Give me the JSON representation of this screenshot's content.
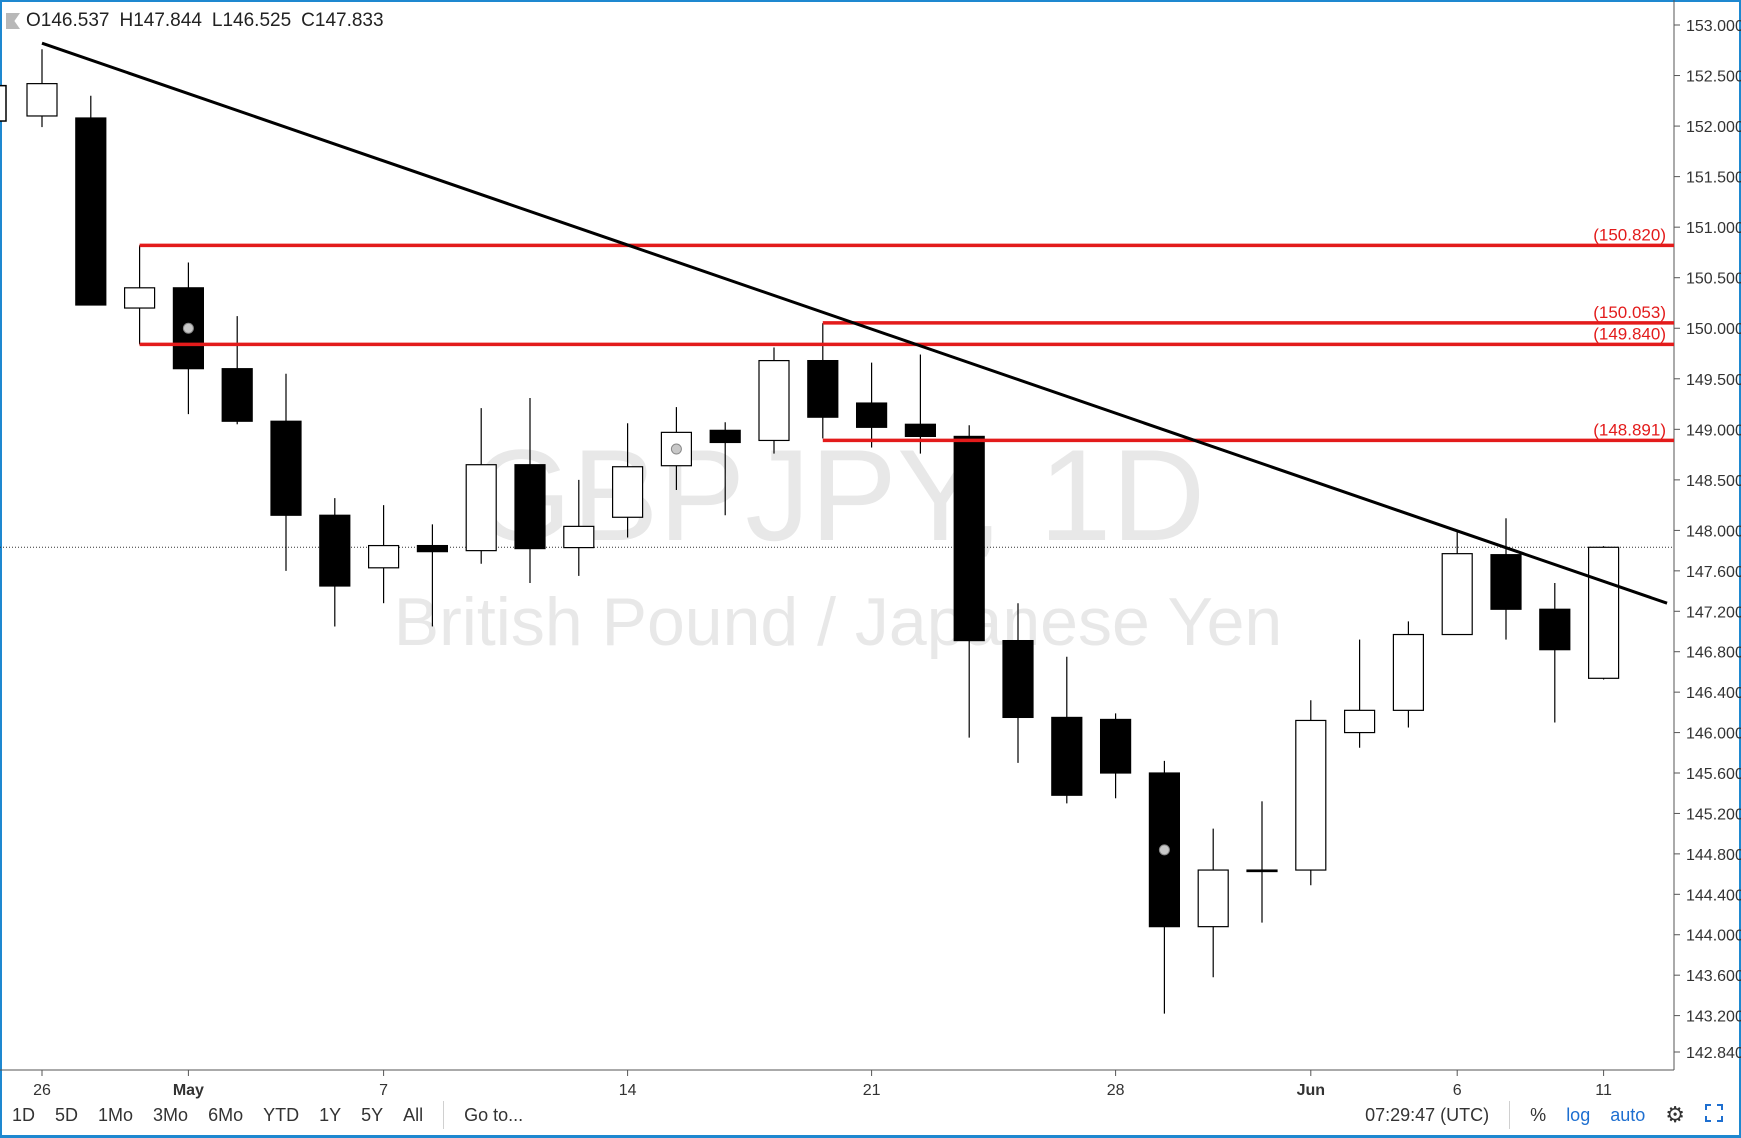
{
  "legend": {
    "o_label": "O",
    "o": "146.537",
    "h_label": "H",
    "h": "147.844",
    "l_label": "L",
    "l": "146.525",
    "c_label": "C",
    "c": "147.833"
  },
  "watermark": {
    "symbol": "GBPJPY, 1D",
    "name": "British Pound / Japanese Yen"
  },
  "toolbar": {
    "ranges": [
      "1D",
      "5D",
      "1Mo",
      "3Mo",
      "6Mo",
      "YTD",
      "1Y",
      "5Y",
      "All"
    ],
    "goto": "Go to...",
    "time": "07:29:47 (UTC)",
    "percent": "%",
    "log": "log",
    "auto": "auto"
  },
  "colors": {
    "up": "#ffffff",
    "down": "#000000",
    "level": "#e31b1b",
    "trendline": "#000000",
    "axis_text": "#333333",
    "frame": "#1e88d0"
  },
  "icons": {
    "settings": "gear-icon",
    "fullscreen": "fullscreen-icon",
    "flag": "flag-icon"
  },
  "chart_data": {
    "type": "candlestick",
    "ylim": [
      142.6,
      153.2
    ],
    "y_ticks": [
      "153.000",
      "152.500",
      "152.000",
      "151.500",
      "151.000",
      "150.500",
      "150.000",
      "149.500",
      "149.000",
      "148.500",
      "148.000",
      "147.600",
      "147.200",
      "146.800",
      "146.400",
      "146.000",
      "145.600",
      "145.200",
      "144.800",
      "144.400",
      "144.000",
      "143.600",
      "143.200",
      "142.840"
    ],
    "x_ticks": [
      {
        "index": 0,
        "label": "26"
      },
      {
        "index": 3,
        "label": "May"
      },
      {
        "index": 7,
        "label": "7"
      },
      {
        "index": 12,
        "label": "14"
      },
      {
        "index": 17,
        "label": "21"
      },
      {
        "index": 22,
        "label": "28"
      },
      {
        "index": 26,
        "label": "Jun"
      },
      {
        "index": 29,
        "label": "6"
      },
      {
        "index": 32,
        "label": "11"
      }
    ],
    "candles": [
      {
        "o": 152.1,
        "h": 152.76,
        "l": 151.99,
        "c": 152.42
      },
      {
        "o": 152.08,
        "h": 152.3,
        "l": 150.23,
        "c": 150.23
      },
      {
        "o": 150.2,
        "h": 150.82,
        "l": 149.84,
        "c": 150.4
      },
      {
        "o": 150.4,
        "h": 150.65,
        "l": 149.15,
        "c": 149.6
      },
      {
        "o": 149.6,
        "h": 150.12,
        "l": 149.05,
        "c": 149.08
      },
      {
        "o": 149.08,
        "h": 149.55,
        "l": 147.6,
        "c": 148.15
      },
      {
        "o": 148.15,
        "h": 148.32,
        "l": 147.05,
        "c": 147.45
      },
      {
        "o": 147.63,
        "h": 148.25,
        "l": 147.28,
        "c": 147.85
      },
      {
        "o": 147.85,
        "h": 148.06,
        "l": 147.05,
        "c": 147.79
      },
      {
        "o": 147.8,
        "h": 149.21,
        "l": 147.67,
        "c": 148.65
      },
      {
        "o": 148.65,
        "h": 149.31,
        "l": 147.48,
        "c": 147.82
      },
      {
        "o": 147.83,
        "h": 148.5,
        "l": 147.55,
        "c": 148.04
      },
      {
        "o": 148.13,
        "h": 149.06,
        "l": 147.93,
        "c": 148.63
      },
      {
        "o": 148.64,
        "h": 149.22,
        "l": 148.4,
        "c": 148.97
      },
      {
        "o": 148.99,
        "h": 149.07,
        "l": 148.15,
        "c": 148.87
      },
      {
        "o": 148.89,
        "h": 149.81,
        "l": 148.76,
        "c": 149.68
      },
      {
        "o": 149.68,
        "h": 150.05,
        "l": 148.91,
        "c": 149.12
      },
      {
        "o": 149.26,
        "h": 149.66,
        "l": 148.82,
        "c": 149.02
      },
      {
        "o": 149.05,
        "h": 149.74,
        "l": 148.76,
        "c": 148.93
      },
      {
        "o": 148.93,
        "h": 149.04,
        "l": 145.95,
        "c": 146.91
      },
      {
        "o": 146.91,
        "h": 147.28,
        "l": 145.7,
        "c": 146.15
      },
      {
        "o": 146.15,
        "h": 146.75,
        "l": 145.3,
        "c": 145.38
      },
      {
        "o": 146.13,
        "h": 146.19,
        "l": 145.35,
        "c": 145.6
      },
      {
        "o": 145.6,
        "h": 145.72,
        "l": 143.22,
        "c": 144.08
      },
      {
        "o": 144.08,
        "h": 145.05,
        "l": 143.58,
        "c": 144.64
      },
      {
        "o": 144.64,
        "h": 145.32,
        "l": 144.12,
        "c": 144.64
      },
      {
        "o": 144.64,
        "h": 146.32,
        "l": 144.49,
        "c": 146.12
      },
      {
        "o": 146.0,
        "h": 146.92,
        "l": 145.85,
        "c": 146.22
      },
      {
        "o": 146.22,
        "h": 147.1,
        "l": 146.05,
        "c": 146.97
      },
      {
        "o": 146.97,
        "h": 148.0,
        "l": 146.97,
        "c": 147.77
      },
      {
        "o": 147.76,
        "h": 148.12,
        "l": 146.92,
        "c": 147.22
      },
      {
        "o": 147.22,
        "h": 147.48,
        "l": 146.1,
        "c": 146.82
      },
      {
        "o": 146.537,
        "h": 147.844,
        "l": 146.525,
        "c": 147.833
      }
    ],
    "marked_candles": [
      3,
      13,
      23
    ],
    "horizontal_levels": [
      {
        "value": 150.82,
        "label": "(150.820)",
        "from_index": 2
      },
      {
        "value": 150.053,
        "label": "(150.053)",
        "from_index": 16
      },
      {
        "value": 149.84,
        "label": "(149.840)",
        "from_index": 2
      },
      {
        "value": 148.891,
        "label": "(148.891)",
        "from_index": 16
      }
    ],
    "trendline": {
      "from": {
        "index": 0,
        "value": 152.82
      },
      "to": {
        "index": 33.3,
        "value": 147.28
      }
    },
    "last_price_line": 147.833
  }
}
